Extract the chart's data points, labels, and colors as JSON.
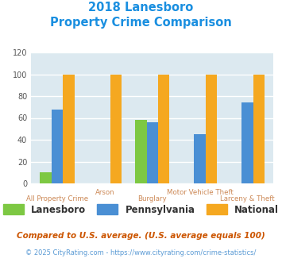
{
  "title_line1": "2018 Lanesboro",
  "title_line2": "Property Crime Comparison",
  "title_color": "#1a8fe0",
  "categories_row1": [
    "All Property Crime",
    "",
    "Burglary",
    "",
    "Larceny & Theft"
  ],
  "categories_row2": [
    "",
    "Arson",
    "",
    "Motor Vehicle Theft",
    ""
  ],
  "lanesboro": [
    10,
    0,
    58,
    0,
    0
  ],
  "pennsylvania": [
    68,
    0,
    56,
    45,
    74
  ],
  "national": [
    100,
    100,
    100,
    100,
    100
  ],
  "lanesboro_color": "#7dc843",
  "pennsylvania_color": "#4a8fd4",
  "national_color": "#f5a820",
  "ylim": [
    0,
    120
  ],
  "yticks": [
    0,
    20,
    40,
    60,
    80,
    100,
    120
  ],
  "background_color": "#dce9f0",
  "grid_color": "#ffffff",
  "legend_labels": [
    "Lanesboro",
    "Pennsylvania",
    "National"
  ],
  "footnote": "Compared to U.S. average. (U.S. average equals 100)",
  "copyright": "© 2025 CityRating.com - https://www.cityrating.com/crime-statistics/",
  "footnote_color": "#cc5500",
  "copyright_color": "#5b9bd5"
}
